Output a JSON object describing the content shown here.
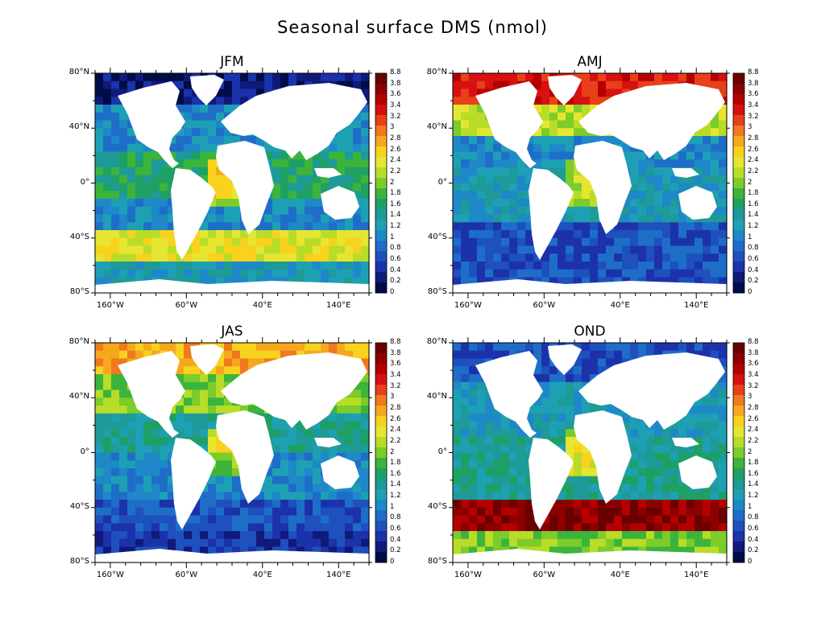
{
  "title": "Seasonal surface DMS (nmol)",
  "latitude_ticks": [
    "80°N",
    "40°N",
    "0°",
    "40°S",
    "80°S"
  ],
  "longitude_ticks": [
    "160°W",
    "60°W",
    "40°E",
    "140°E"
  ],
  "colorbar": {
    "levels": [
      "8.8",
      "3.8",
      "3.6",
      "3.4",
      "3.2",
      "3",
      "2.8",
      "2.6",
      "2.4",
      "2.2",
      "2",
      "1.8",
      "1.6",
      "1.4",
      "1.2",
      "1",
      "0.8",
      "0.6",
      "0.4",
      "0.2",
      "0"
    ],
    "colors": [
      "#6a0000",
      "#8c0000",
      "#b40000",
      "#d71010",
      "#e8401a",
      "#f0781e",
      "#f5a81e",
      "#f8d21c",
      "#e6e632",
      "#b8dc28",
      "#7ccc2a",
      "#3cb43c",
      "#1ea064",
      "#1e9a98",
      "#1ea0b4",
      "#1e88c8",
      "#1e6ec8",
      "#1e50be",
      "#1c32aa",
      "#101a7a",
      "#000c48"
    ]
  },
  "panels": [
    {
      "id": "jfm",
      "label": "JFM"
    },
    {
      "id": "amj",
      "label": "AMJ"
    },
    {
      "id": "jas",
      "label": "JAS"
    },
    {
      "id": "ond",
      "label": "OND"
    }
  ]
}
